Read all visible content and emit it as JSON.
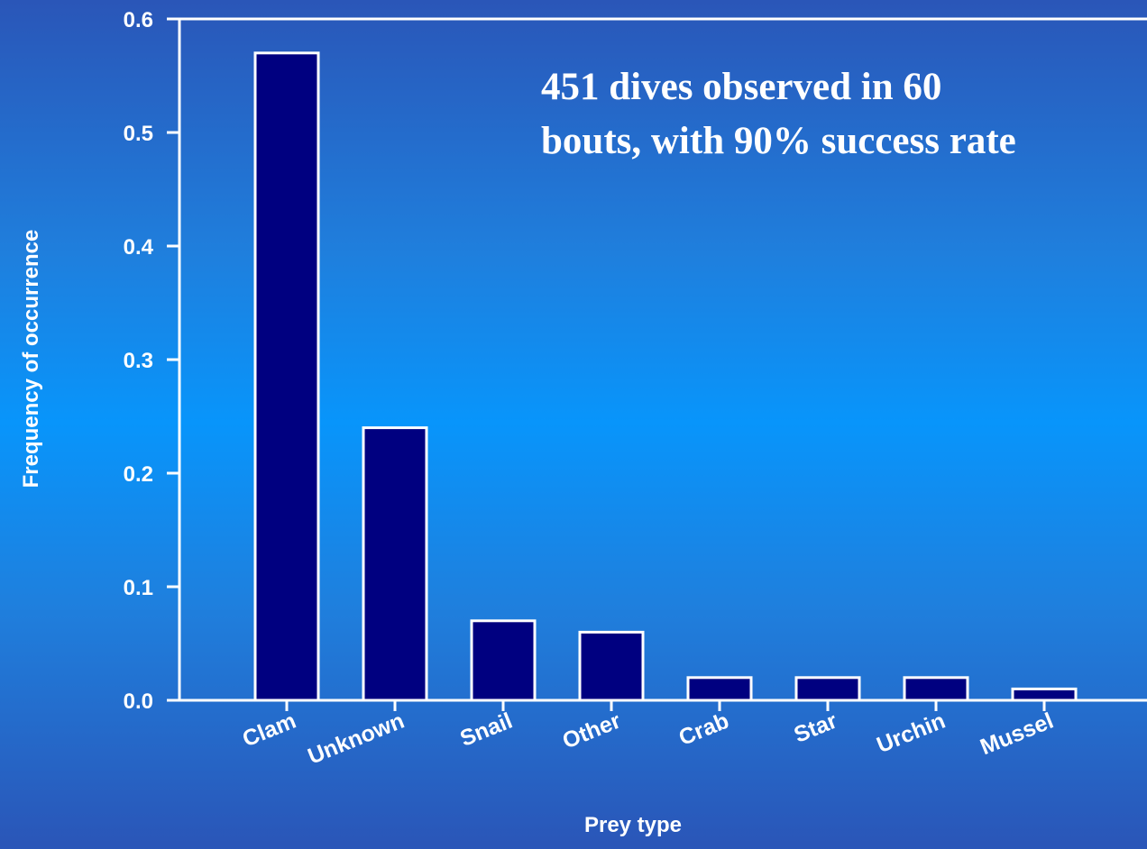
{
  "chart_data": {
    "type": "bar",
    "categories": [
      "Clam",
      "Unknown",
      "Snail",
      "Other",
      "Crab",
      "Star",
      "Urchin",
      "Mussel"
    ],
    "values": [
      0.57,
      0.24,
      0.07,
      0.06,
      0.02,
      0.02,
      0.02,
      0.01
    ],
    "title": "",
    "xlabel": "Prey type",
    "ylabel": "Frequency of occurrence",
    "ylim": [
      0,
      0.6
    ],
    "yticks": [
      "0.0",
      "0.1",
      "0.2",
      "0.3",
      "0.4",
      "0.5",
      "0.6"
    ],
    "annotation": [
      "451 dives observed in 60",
      "bouts, with 90% success rate"
    ],
    "grid": false,
    "legend": "none",
    "colors": {
      "bar_fill": "#000080",
      "bar_stroke": "#ffffff",
      "axis": "#ffffff",
      "text": "#ffffff"
    }
  }
}
